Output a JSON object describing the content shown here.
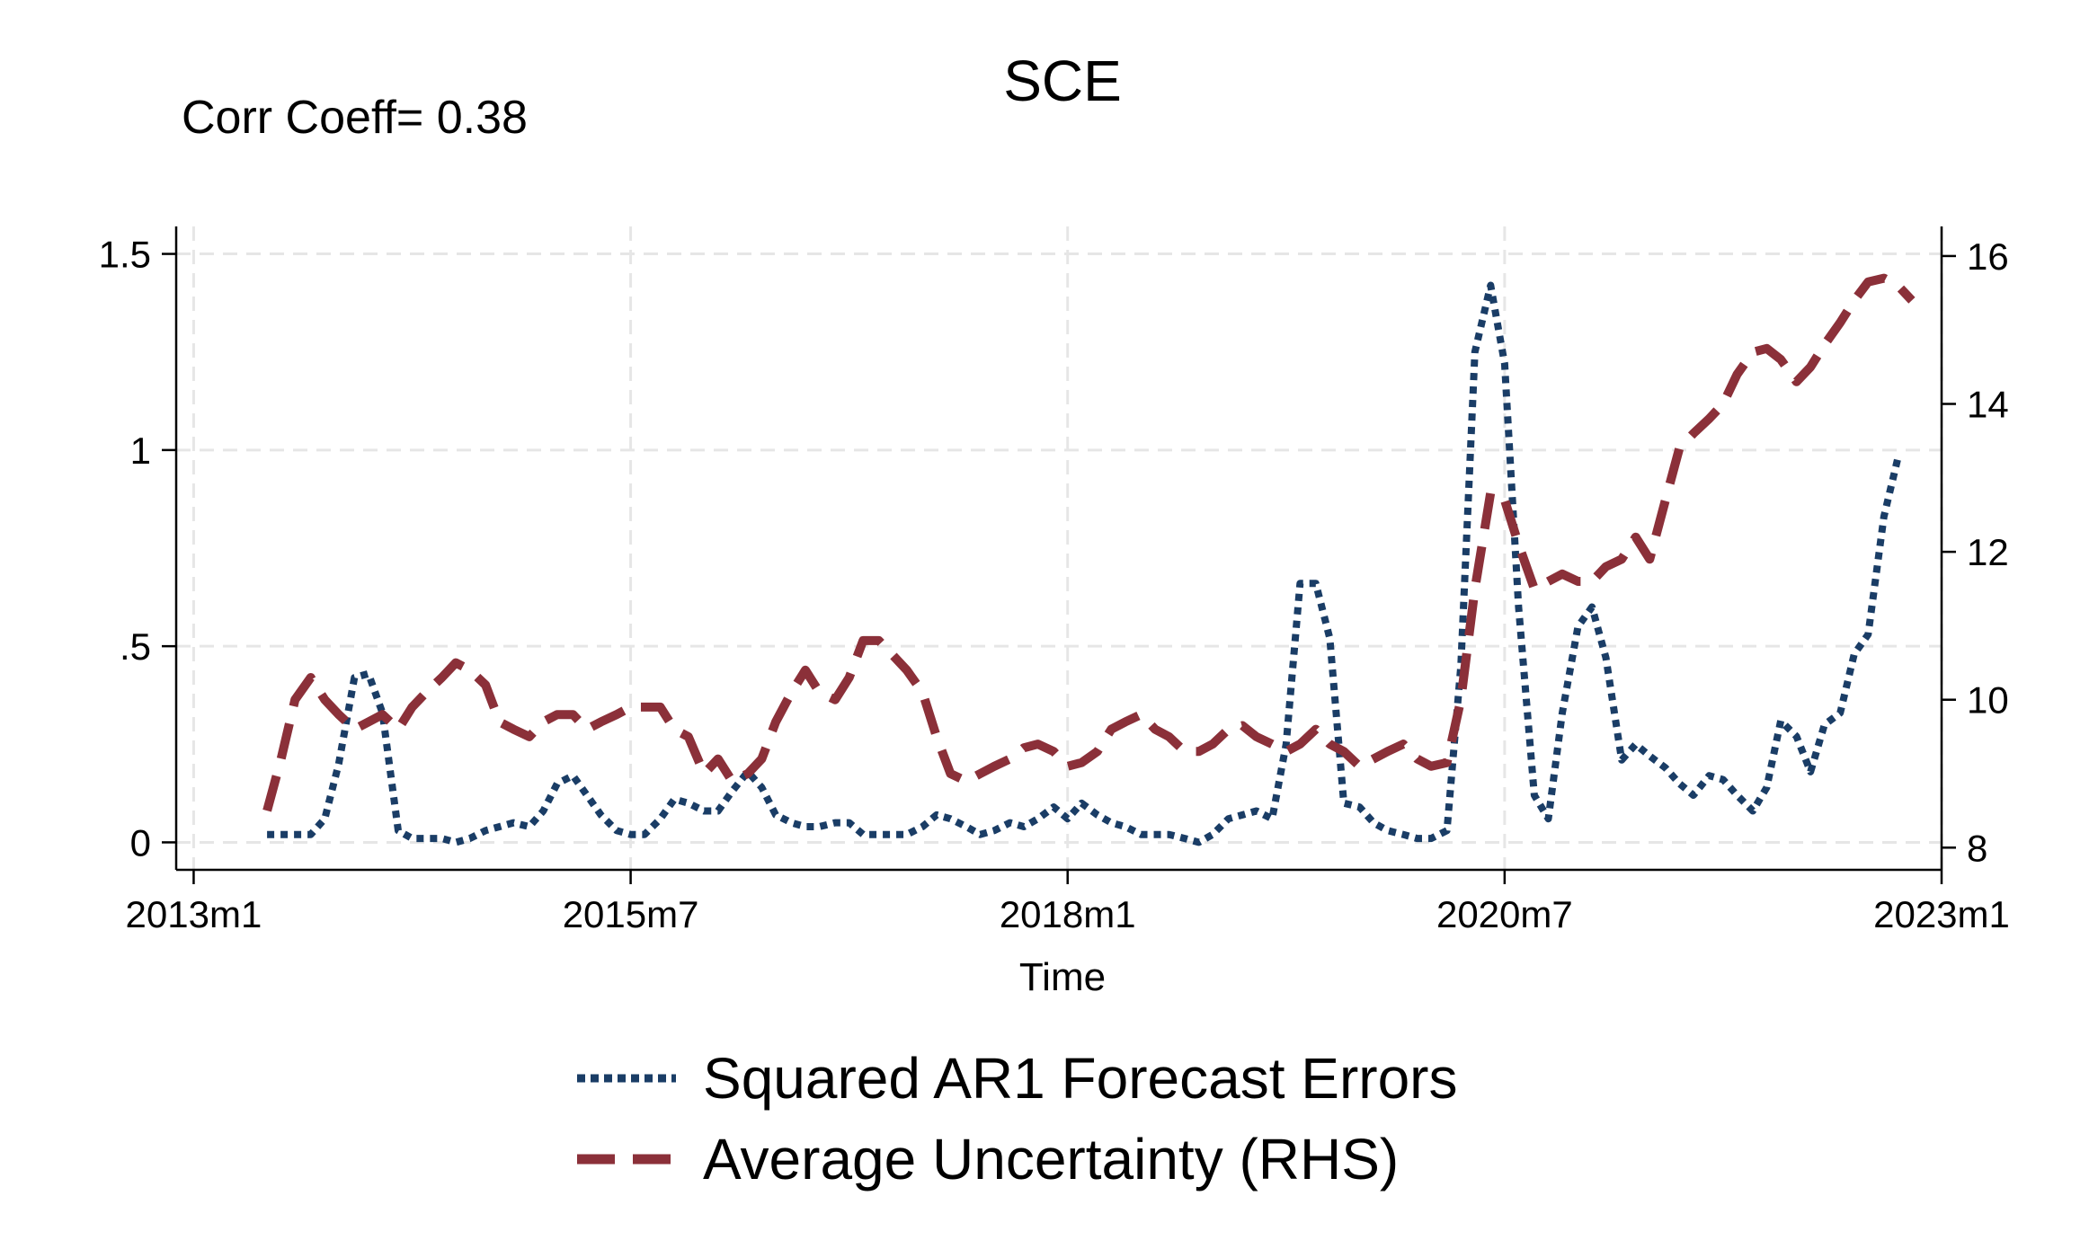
{
  "chart_data": {
    "type": "line",
    "title": "SCE",
    "annotation": "Corr Coeff= 0.38",
    "xlabel": "Time",
    "ylabel_left": "",
    "ylabel_right": "",
    "x_ticks": [
      {
        "label": "2013m1",
        "value": 2013.0
      },
      {
        "label": "2015m7",
        "value": 2015.5
      },
      {
        "label": "2018m1",
        "value": 2018.0
      },
      {
        "label": "2020m7",
        "value": 2020.5
      },
      {
        "label": "2023m1",
        "value": 2023.0
      }
    ],
    "y_left_ticks": [
      {
        "label": "0",
        "value": 0
      },
      {
        "label": ".5",
        "value": 0.5
      },
      {
        "label": "1",
        "value": 1
      },
      {
        "label": "1.5",
        "value": 1.5
      }
    ],
    "y_right_ticks": [
      {
        "label": "8",
        "value": 8
      },
      {
        "label": "10",
        "value": 10
      },
      {
        "label": "12",
        "value": 12
      },
      {
        "label": "14",
        "value": 14
      },
      {
        "label": "16",
        "value": 16
      }
    ],
    "xlim": [
      2012.9,
      2023.0
    ],
    "ylim_left": [
      -0.07,
      1.57
    ],
    "ylim_right": [
      7.7,
      16.4
    ],
    "grid": true,
    "legend_position": "bottom-center",
    "series": [
      {
        "name": "Squared AR1 Forecast Errors",
        "axis": "left",
        "style": "dotted",
        "color": "#1a3d66",
        "points": [
          [
            2013.42,
            0.02
          ],
          [
            2013.5,
            0.02
          ],
          [
            2013.58,
            0.02
          ],
          [
            2013.67,
            0.02
          ],
          [
            2013.75,
            0.06
          ],
          [
            2013.83,
            0.2
          ],
          [
            2013.92,
            0.42
          ],
          [
            2014.0,
            0.43
          ],
          [
            2014.08,
            0.33
          ],
          [
            2014.17,
            0.03
          ],
          [
            2014.25,
            0.01
          ],
          [
            2014.33,
            0.01
          ],
          [
            2014.42,
            0.01
          ],
          [
            2014.5,
            0.0
          ],
          [
            2014.58,
            0.01
          ],
          [
            2014.67,
            0.03
          ],
          [
            2014.75,
            0.04
          ],
          [
            2014.83,
            0.05
          ],
          [
            2014.92,
            0.04
          ],
          [
            2015.0,
            0.08
          ],
          [
            2015.08,
            0.15
          ],
          [
            2015.17,
            0.17
          ],
          [
            2015.25,
            0.12
          ],
          [
            2015.33,
            0.07
          ],
          [
            2015.42,
            0.03
          ],
          [
            2015.5,
            0.02
          ],
          [
            2015.58,
            0.02
          ],
          [
            2015.67,
            0.06
          ],
          [
            2015.75,
            0.11
          ],
          [
            2015.83,
            0.1
          ],
          [
            2015.92,
            0.08
          ],
          [
            2016.0,
            0.08
          ],
          [
            2016.08,
            0.13
          ],
          [
            2016.17,
            0.18
          ],
          [
            2016.25,
            0.14
          ],
          [
            2016.33,
            0.07
          ],
          [
            2016.42,
            0.05
          ],
          [
            2016.5,
            0.04
          ],
          [
            2016.58,
            0.04
          ],
          [
            2016.67,
            0.05
          ],
          [
            2016.75,
            0.05
          ],
          [
            2016.83,
            0.02
          ],
          [
            2016.92,
            0.02
          ],
          [
            2017.0,
            0.02
          ],
          [
            2017.08,
            0.02
          ],
          [
            2017.17,
            0.04
          ],
          [
            2017.25,
            0.07
          ],
          [
            2017.33,
            0.06
          ],
          [
            2017.42,
            0.04
          ],
          [
            2017.5,
            0.02
          ],
          [
            2017.58,
            0.03
          ],
          [
            2017.67,
            0.05
          ],
          [
            2017.75,
            0.04
          ],
          [
            2017.83,
            0.06
          ],
          [
            2017.92,
            0.09
          ],
          [
            2018.0,
            0.06
          ],
          [
            2018.08,
            0.1
          ],
          [
            2018.17,
            0.07
          ],
          [
            2018.25,
            0.05
          ],
          [
            2018.33,
            0.04
          ],
          [
            2018.42,
            0.02
          ],
          [
            2018.5,
            0.02
          ],
          [
            2018.58,
            0.02
          ],
          [
            2018.67,
            0.01
          ],
          [
            2018.75,
            0.0
          ],
          [
            2018.83,
            0.02
          ],
          [
            2018.92,
            0.06
          ],
          [
            2019.0,
            0.07
          ],
          [
            2019.08,
            0.08
          ],
          [
            2019.17,
            0.06
          ],
          [
            2019.25,
            0.25
          ],
          [
            2019.33,
            0.66
          ],
          [
            2019.42,
            0.66
          ],
          [
            2019.5,
            0.52
          ],
          [
            2019.58,
            0.1
          ],
          [
            2019.67,
            0.09
          ],
          [
            2019.75,
            0.05
          ],
          [
            2019.83,
            0.03
          ],
          [
            2019.92,
            0.02
          ],
          [
            2020.0,
            0.01
          ],
          [
            2020.08,
            0.01
          ],
          [
            2020.17,
            0.03
          ],
          [
            2020.25,
            0.45
          ],
          [
            2020.33,
            1.25
          ],
          [
            2020.42,
            1.42
          ],
          [
            2020.5,
            1.22
          ],
          [
            2020.58,
            0.6
          ],
          [
            2020.67,
            0.12
          ],
          [
            2020.75,
            0.06
          ],
          [
            2020.83,
            0.33
          ],
          [
            2020.92,
            0.55
          ],
          [
            2021.0,
            0.6
          ],
          [
            2021.08,
            0.47
          ],
          [
            2021.17,
            0.21
          ],
          [
            2021.25,
            0.25
          ],
          [
            2021.33,
            0.22
          ],
          [
            2021.42,
            0.19
          ],
          [
            2021.5,
            0.15
          ],
          [
            2021.58,
            0.12
          ],
          [
            2021.67,
            0.17
          ],
          [
            2021.75,
            0.16
          ],
          [
            2021.83,
            0.12
          ],
          [
            2021.92,
            0.08
          ],
          [
            2022.0,
            0.14
          ],
          [
            2022.08,
            0.31
          ],
          [
            2022.17,
            0.27
          ],
          [
            2022.25,
            0.18
          ],
          [
            2022.33,
            0.3
          ],
          [
            2022.42,
            0.33
          ],
          [
            2022.5,
            0.48
          ],
          [
            2022.58,
            0.53
          ],
          [
            2022.67,
            0.83
          ],
          [
            2022.75,
            0.98
          ]
        ]
      },
      {
        "name": "Average Uncertainty (RHS)",
        "axis": "right",
        "style": "dashed",
        "color": "#8b3039",
        "points": [
          [
            2013.42,
            8.5
          ],
          [
            2013.5,
            9.2
          ],
          [
            2013.58,
            10.0
          ],
          [
            2013.67,
            10.3
          ],
          [
            2013.75,
            10.0
          ],
          [
            2013.83,
            9.8
          ],
          [
            2013.92,
            9.6
          ],
          [
            2014.0,
            9.7
          ],
          [
            2014.08,
            9.8
          ],
          [
            2014.17,
            9.6
          ],
          [
            2014.25,
            9.9
          ],
          [
            2014.33,
            10.1
          ],
          [
            2014.42,
            10.3
          ],
          [
            2014.5,
            10.5
          ],
          [
            2014.58,
            10.4
          ],
          [
            2014.67,
            10.2
          ],
          [
            2014.75,
            9.7
          ],
          [
            2014.83,
            9.6
          ],
          [
            2014.92,
            9.5
          ],
          [
            2015.0,
            9.7
          ],
          [
            2015.08,
            9.8
          ],
          [
            2015.17,
            9.8
          ],
          [
            2015.25,
            9.6
          ],
          [
            2015.33,
            9.7
          ],
          [
            2015.42,
            9.8
          ],
          [
            2015.5,
            9.9
          ],
          [
            2015.58,
            9.9
          ],
          [
            2015.67,
            9.9
          ],
          [
            2015.75,
            9.6
          ],
          [
            2015.83,
            9.5
          ],
          [
            2015.92,
            9.0
          ],
          [
            2016.0,
            9.2
          ],
          [
            2016.08,
            8.9
          ],
          [
            2016.17,
            9.0
          ],
          [
            2016.25,
            9.2
          ],
          [
            2016.33,
            9.7
          ],
          [
            2016.42,
            10.1
          ],
          [
            2016.5,
            10.4
          ],
          [
            2016.58,
            10.1
          ],
          [
            2016.67,
            10.0
          ],
          [
            2016.75,
            10.3
          ],
          [
            2016.83,
            10.8
          ],
          [
            2016.92,
            10.8
          ],
          [
            2017.0,
            10.6
          ],
          [
            2017.08,
            10.4
          ],
          [
            2017.17,
            10.1
          ],
          [
            2017.25,
            9.5
          ],
          [
            2017.33,
            9.0
          ],
          [
            2017.42,
            8.9
          ],
          [
            2017.5,
            9.0
          ],
          [
            2017.58,
            9.1
          ],
          [
            2017.67,
            9.2
          ],
          [
            2017.75,
            9.35
          ],
          [
            2017.83,
            9.4
          ],
          [
            2017.92,
            9.3
          ],
          [
            2018.0,
            9.1
          ],
          [
            2018.08,
            9.15
          ],
          [
            2018.17,
            9.3
          ],
          [
            2018.25,
            9.6
          ],
          [
            2018.33,
            9.7
          ],
          [
            2018.42,
            9.8
          ],
          [
            2018.5,
            9.6
          ],
          [
            2018.58,
            9.5
          ],
          [
            2018.67,
            9.3
          ],
          [
            2018.75,
            9.3
          ],
          [
            2018.83,
            9.4
          ],
          [
            2018.92,
            9.6
          ],
          [
            2019.0,
            9.65
          ],
          [
            2019.08,
            9.5
          ],
          [
            2019.17,
            9.4
          ],
          [
            2019.25,
            9.3
          ],
          [
            2019.33,
            9.4
          ],
          [
            2019.42,
            9.6
          ],
          [
            2019.5,
            9.4
          ],
          [
            2019.58,
            9.3
          ],
          [
            2019.67,
            9.1
          ],
          [
            2019.75,
            9.2
          ],
          [
            2019.83,
            9.3
          ],
          [
            2019.92,
            9.4
          ],
          [
            2020.0,
            9.2
          ],
          [
            2020.08,
            9.1
          ],
          [
            2020.17,
            9.15
          ],
          [
            2020.25,
            10.0
          ],
          [
            2020.33,
            11.5
          ],
          [
            2020.42,
            12.8
          ],
          [
            2020.5,
            12.7
          ],
          [
            2020.58,
            12.1
          ],
          [
            2020.67,
            11.5
          ],
          [
            2020.75,
            11.6
          ],
          [
            2020.83,
            11.7
          ],
          [
            2020.92,
            11.6
          ],
          [
            2021.0,
            11.6
          ],
          [
            2021.08,
            11.8
          ],
          [
            2021.17,
            11.9
          ],
          [
            2021.25,
            12.2
          ],
          [
            2021.33,
            11.9
          ],
          [
            2021.42,
            12.7
          ],
          [
            2021.5,
            13.4
          ],
          [
            2021.58,
            13.6
          ],
          [
            2021.67,
            13.8
          ],
          [
            2021.75,
            14.0
          ],
          [
            2021.83,
            14.4
          ],
          [
            2021.92,
            14.7
          ],
          [
            2022.0,
            14.75
          ],
          [
            2022.08,
            14.6
          ],
          [
            2022.17,
            14.3
          ],
          [
            2022.25,
            14.5
          ],
          [
            2022.33,
            14.8
          ],
          [
            2022.42,
            15.1
          ],
          [
            2022.5,
            15.4
          ],
          [
            2022.58,
            15.65
          ],
          [
            2022.67,
            15.7
          ],
          [
            2022.75,
            15.6
          ],
          [
            2022.83,
            15.4
          ]
        ]
      }
    ]
  }
}
